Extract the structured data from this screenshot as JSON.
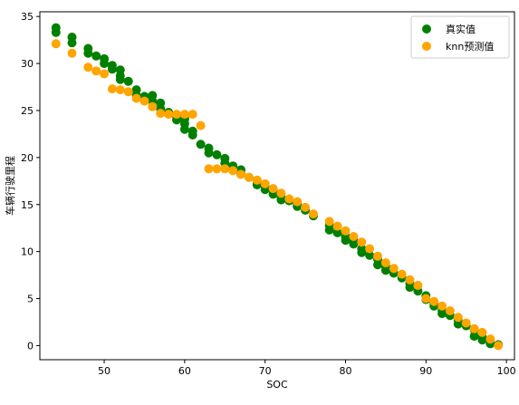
{
  "chart_data": {
    "type": "scatter",
    "xlabel": "SOC",
    "ylabel": "车辆行驶里程",
    "xlim": [
      42,
      101
    ],
    "ylim": [
      -1.5,
      35.5
    ],
    "xticks": [
      50,
      60,
      70,
      80,
      90,
      100
    ],
    "yticks": [
      0,
      5,
      10,
      15,
      20,
      25,
      30,
      35
    ],
    "legend_position": "top-right",
    "series": [
      {
        "name": "真实值",
        "color": "#008000",
        "points": [
          [
            44,
            33.8
          ],
          [
            44,
            33.3
          ],
          [
            46,
            32.8
          ],
          [
            46,
            32.2
          ],
          [
            48,
            31.6
          ],
          [
            48,
            31.1
          ],
          [
            49,
            30.8
          ],
          [
            50,
            30.5
          ],
          [
            50,
            30.0
          ],
          [
            51,
            29.8
          ],
          [
            51,
            29.4
          ],
          [
            52,
            29.3
          ],
          [
            52,
            28.7
          ],
          [
            52,
            28.3
          ],
          [
            53,
            28.1
          ],
          [
            54,
            27.2
          ],
          [
            54,
            26.6
          ],
          [
            55,
            26.5
          ],
          [
            55,
            26.2
          ],
          [
            56,
            26.6
          ],
          [
            56,
            26.0
          ],
          [
            57,
            25.8
          ],
          [
            57,
            25.2
          ],
          [
            58,
            24.8
          ],
          [
            59,
            24.4
          ],
          [
            59,
            24.0
          ],
          [
            60,
            24.1
          ],
          [
            60,
            23.6
          ],
          [
            60,
            23.0
          ],
          [
            61,
            22.8
          ],
          [
            61,
            22.4
          ],
          [
            62,
            21.4
          ],
          [
            63,
            21.0
          ],
          [
            63,
            20.5
          ],
          [
            64,
            20.3
          ],
          [
            65,
            19.9
          ],
          [
            65,
            19.4
          ],
          [
            66,
            19.1
          ],
          [
            67,
            18.7
          ],
          [
            67,
            18.3
          ],
          [
            68,
            17.9
          ],
          [
            69,
            17.5
          ],
          [
            69,
            17.1
          ],
          [
            70,
            16.9
          ],
          [
            70,
            16.6
          ],
          [
            71,
            16.5
          ],
          [
            71,
            16.1
          ],
          [
            72,
            15.8
          ],
          [
            72,
            15.5
          ],
          [
            73,
            15.4
          ],
          [
            74,
            15.1
          ],
          [
            74,
            14.8
          ],
          [
            75,
            14.4
          ],
          [
            76,
            13.8
          ],
          [
            78,
            12.8
          ],
          [
            78,
            12.3
          ],
          [
            79,
            12.0
          ],
          [
            80,
            11.6
          ],
          [
            80,
            11.2
          ],
          [
            81,
            11.2
          ],
          [
            81,
            10.8
          ],
          [
            82,
            10.3
          ],
          [
            82,
            9.9
          ],
          [
            83,
            9.6
          ],
          [
            84,
            9.2
          ],
          [
            84,
            8.6
          ],
          [
            85,
            8.4
          ],
          [
            85,
            8.0
          ],
          [
            86,
            7.7
          ],
          [
            87,
            7.2
          ],
          [
            88,
            6.6
          ],
          [
            88,
            6.2
          ],
          [
            89,
            5.8
          ],
          [
            90,
            5.3
          ],
          [
            90,
            4.9
          ],
          [
            91,
            4.5
          ],
          [
            91,
            4.2
          ],
          [
            92,
            3.7
          ],
          [
            92,
            3.4
          ],
          [
            93,
            3.2
          ],
          [
            94,
            2.7
          ],
          [
            94,
            2.3
          ],
          [
            95,
            2.1
          ],
          [
            96,
            1.7
          ],
          [
            96,
            1.0
          ],
          [
            97,
            0.9
          ],
          [
            97,
            0.6
          ],
          [
            98,
            0.2
          ],
          [
            99,
            0.1
          ]
        ]
      },
      {
        "name": "knn预测值",
        "color": "#ffa500",
        "points": [
          [
            44,
            32.1
          ],
          [
            46,
            31.1
          ],
          [
            48,
            29.6
          ],
          [
            49,
            29.2
          ],
          [
            50,
            28.9
          ],
          [
            51,
            27.3
          ],
          [
            52,
            27.2
          ],
          [
            53,
            27.0
          ],
          [
            54,
            26.3
          ],
          [
            55,
            26.0
          ],
          [
            56,
            25.4
          ],
          [
            57,
            24.7
          ],
          [
            58,
            24.6
          ],
          [
            59,
            24.6
          ],
          [
            60,
            24.6
          ],
          [
            61,
            24.6
          ],
          [
            62,
            23.4
          ],
          [
            63,
            18.8
          ],
          [
            64,
            18.8
          ],
          [
            65,
            18.8
          ],
          [
            66,
            18.6
          ],
          [
            67,
            18.2
          ],
          [
            68,
            17.9
          ],
          [
            69,
            17.6
          ],
          [
            70,
            17.2
          ],
          [
            71,
            16.7
          ],
          [
            72,
            16.2
          ],
          [
            73,
            15.6
          ],
          [
            74,
            15.3
          ],
          [
            75,
            14.7
          ],
          [
            76,
            14.0
          ],
          [
            78,
            13.2
          ],
          [
            79,
            12.7
          ],
          [
            80,
            12.2
          ],
          [
            81,
            11.6
          ],
          [
            82,
            11.0
          ],
          [
            83,
            10.3
          ],
          [
            84,
            9.5
          ],
          [
            85,
            8.8
          ],
          [
            86,
            8.2
          ],
          [
            87,
            7.6
          ],
          [
            88,
            7.0
          ],
          [
            89,
            6.4
          ],
          [
            90,
            5.0
          ],
          [
            91,
            4.7
          ],
          [
            92,
            4.2
          ],
          [
            93,
            3.7
          ],
          [
            94,
            3.0
          ],
          [
            95,
            2.4
          ],
          [
            96,
            1.8
          ],
          [
            97,
            1.4
          ],
          [
            98,
            0.7
          ],
          [
            99,
            0.0
          ]
        ]
      }
    ]
  }
}
